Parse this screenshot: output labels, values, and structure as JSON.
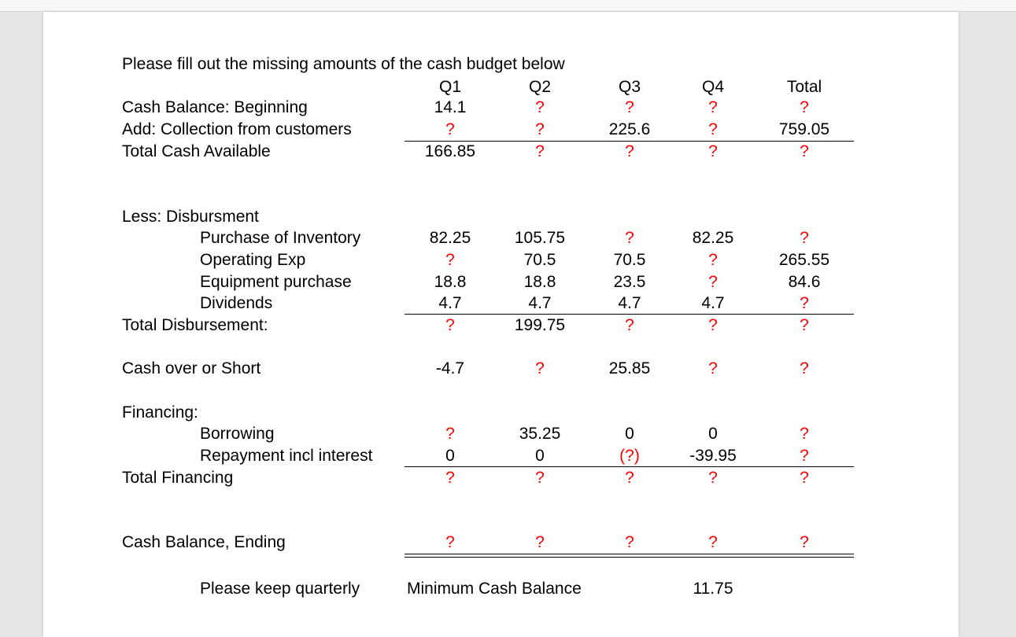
{
  "title": "Please fill out the missing amounts of the cash budget below",
  "columns": [
    "Q1",
    "Q2",
    "Q3",
    "Q4",
    "Total"
  ],
  "rows": {
    "cash_beginning": {
      "label": "Cash Balance:  Beginning",
      "values": [
        "14.1",
        "?",
        "?",
        "?",
        "?"
      ]
    },
    "collections": {
      "label": "Add: Collection from customers",
      "values": [
        "?",
        "?",
        "225.6",
        "?",
        "759.05"
      ]
    },
    "total_cash_available": {
      "label": "Total Cash Available",
      "values": [
        "166.85",
        "?",
        "?",
        "?",
        "?"
      ]
    },
    "less_disbursement": {
      "label": "Less: Disbursment"
    },
    "purchase_inventory": {
      "label": "Purchase of Inventory",
      "values": [
        "82.25",
        "105.75",
        "?",
        "82.25",
        "?"
      ]
    },
    "operating_exp": {
      "label": "Operating Exp",
      "values": [
        "?",
        "70.5",
        "70.5",
        "?",
        "265.55"
      ]
    },
    "equipment_purchase": {
      "label": "Equipment purchase",
      "values": [
        "18.8",
        "18.8",
        "23.5",
        "?",
        "84.6"
      ]
    },
    "dividends": {
      "label": "Dividends",
      "values": [
        "4.7",
        "4.7",
        "4.7",
        "4.7",
        "?"
      ]
    },
    "total_disbursement": {
      "label": "Total Disbursement:",
      "values": [
        "?",
        "199.75",
        "?",
        "?",
        "?"
      ]
    },
    "cash_over_short": {
      "label": "Cash over or Short",
      "values": [
        "-4.7",
        "?",
        "25.85",
        "?",
        "?"
      ]
    },
    "financing": {
      "label": "Financing:"
    },
    "borrowing": {
      "label": "Borrowing",
      "values": [
        "?",
        "35.25",
        "0",
        "0",
        "?"
      ]
    },
    "repayment": {
      "label": "Repayment incl interest",
      "values": [
        "0",
        "0",
        "(?)",
        "-39.95",
        "?"
      ]
    },
    "total_financing": {
      "label": "Total Financing",
      "values": [
        "?",
        "?",
        "?",
        "?",
        "?"
      ]
    },
    "cash_ending": {
      "label": "Cash Balance, Ending",
      "values": [
        "?",
        "?",
        "?",
        "?",
        "?"
      ]
    }
  },
  "footer": {
    "note": "Please keep quarterly",
    "min_label": "Minimum Cash Balance",
    "min_value": "11.75"
  },
  "colors": {
    "missing": "#ff0000",
    "text": "#000000"
  }
}
